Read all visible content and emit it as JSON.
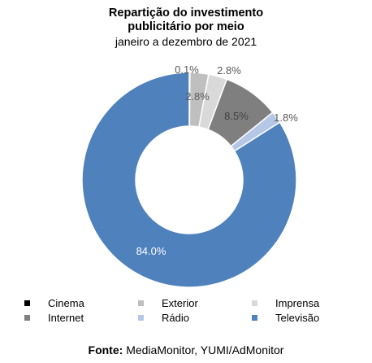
{
  "chart_data": {
    "type": "pie",
    "title": "Repartição do investimento publicitário por meio",
    "subtitle": "janeiro a dezembro de 2021",
    "slices": [
      {
        "name": "Cinema",
        "value": 0.1,
        "label": "0.1%",
        "color": "#000000"
      },
      {
        "name": "Exterior",
        "value": 2.8,
        "label": "2.8%",
        "color": "#bfbfbf"
      },
      {
        "name": "Imprensa",
        "value": 2.8,
        "label": "2.8%",
        "color": "#d9d9d9"
      },
      {
        "name": "Internet",
        "value": 8.5,
        "label": "8.5%",
        "color": "#7f7f7f"
      },
      {
        "name": "Rádio",
        "value": 1.8,
        "label": "1.8%",
        "color": "#b4c7e7"
      },
      {
        "name": "Televisão",
        "value": 84.0,
        "label": "84.0%",
        "color": "#4f81bd"
      }
    ],
    "legend_position": "bottom"
  },
  "legend": {
    "items": [
      {
        "label": "Cinema",
        "color": "#000000"
      },
      {
        "label": "Exterior",
        "color": "#bfbfbf"
      },
      {
        "label": "Imprensa",
        "color": "#d9d9d9"
      },
      {
        "label": "Internet",
        "color": "#7f7f7f"
      },
      {
        "label": "Rádio",
        "color": "#b4c7e7"
      },
      {
        "label": "Televisão",
        "color": "#4f81bd"
      }
    ]
  },
  "source": {
    "prefix": "Fonte:",
    "text": "MediaMonitor, YUMI/AdMonitor"
  }
}
